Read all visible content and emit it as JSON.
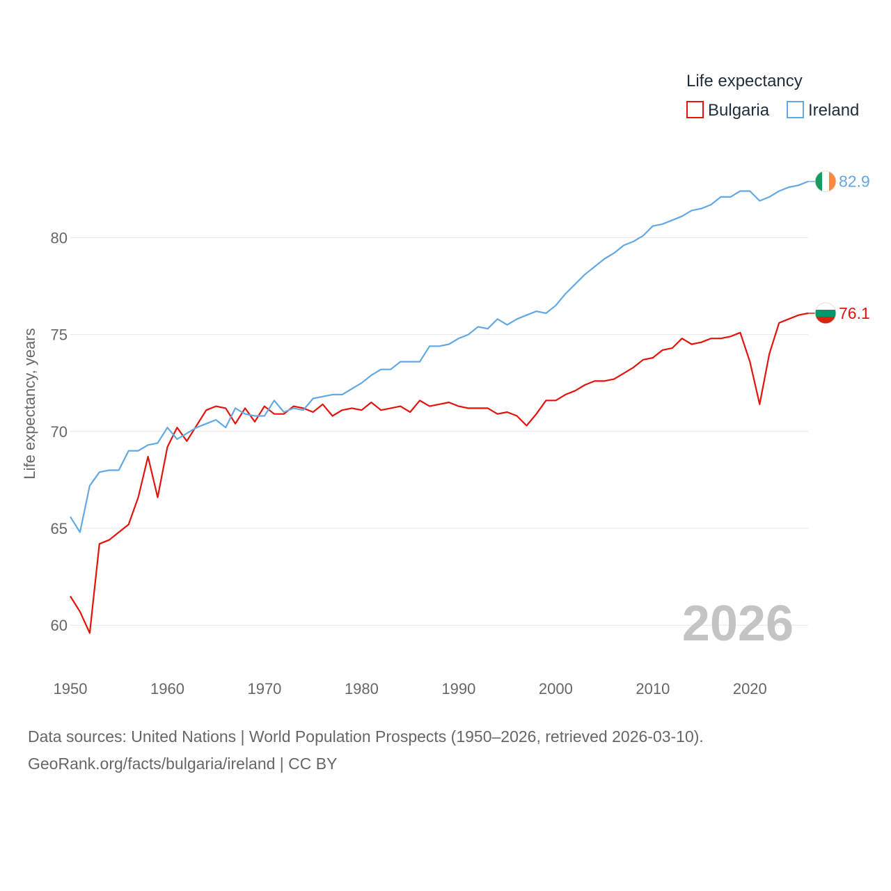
{
  "colors": {
    "bulgaria": "#e3120b",
    "ireland": "#62a8e5",
    "grid": "#e6e6e6",
    "text": "#666666",
    "legend_text": "#1f2d3d",
    "watermark": "#c4c4c4"
  },
  "legend": {
    "title": "Life expectancy",
    "items": [
      "Bulgaria",
      "Ireland"
    ]
  },
  "year_watermark": "2026",
  "footer": {
    "line1": "Data sources: United Nations | World Population Prospects (1950–2026, retrieved 2026-03-10).",
    "line2": "GeoRank.org/facts/bulgaria/ireland | CC BY"
  },
  "chart_data": {
    "type": "line",
    "title": "",
    "xlabel": "",
    "ylabel": "Life expectancy, years",
    "xlim": [
      1950,
      2026
    ],
    "ylim": [
      58.5,
      84
    ],
    "x_ticks": [
      1950,
      1960,
      1970,
      1980,
      1990,
      2000,
      2010,
      2020
    ],
    "y_ticks": [
      60,
      65,
      70,
      75,
      80
    ],
    "grid": true,
    "legend_position": "top-right",
    "x": [
      1950,
      1951,
      1952,
      1953,
      1954,
      1955,
      1956,
      1957,
      1958,
      1959,
      1960,
      1961,
      1962,
      1963,
      1964,
      1965,
      1966,
      1967,
      1968,
      1969,
      1970,
      1971,
      1972,
      1973,
      1974,
      1975,
      1976,
      1977,
      1978,
      1979,
      1980,
      1981,
      1982,
      1983,
      1984,
      1985,
      1986,
      1987,
      1988,
      1989,
      1990,
      1991,
      1992,
      1993,
      1994,
      1995,
      1996,
      1997,
      1998,
      1999,
      2000,
      2001,
      2002,
      2003,
      2004,
      2005,
      2006,
      2007,
      2008,
      2009,
      2010,
      2011,
      2012,
      2013,
      2014,
      2015,
      2016,
      2017,
      2018,
      2019,
      2020,
      2021,
      2022,
      2023,
      2024,
      2025,
      2026
    ],
    "series": [
      {
        "name": "Bulgaria",
        "color": "#e3120b",
        "end_label": "76.1",
        "values": [
          61.5,
          60.7,
          59.6,
          64.2,
          64.4,
          64.8,
          65.2,
          66.6,
          68.7,
          66.6,
          69.2,
          70.2,
          69.5,
          70.3,
          71.1,
          71.3,
          71.2,
          70.4,
          71.2,
          70.5,
          71.3,
          70.9,
          70.9,
          71.3,
          71.2,
          71.0,
          71.4,
          70.8,
          71.1,
          71.2,
          71.1,
          71.5,
          71.1,
          71.2,
          71.3,
          71.0,
          71.6,
          71.3,
          71.4,
          71.5,
          71.3,
          71.2,
          71.2,
          71.2,
          70.9,
          71.0,
          70.8,
          70.3,
          70.9,
          71.6,
          71.6,
          71.9,
          72.1,
          72.4,
          72.6,
          72.6,
          72.7,
          73.0,
          73.3,
          73.7,
          73.8,
          74.2,
          74.3,
          74.8,
          74.5,
          74.6,
          74.8,
          74.8,
          74.9,
          75.1,
          73.6,
          71.4,
          74.0,
          75.6,
          75.8,
          76.0,
          76.1
        ]
      },
      {
        "name": "Ireland",
        "color": "#62a8e5",
        "end_label": "82.9",
        "values": [
          65.6,
          64.8,
          67.2,
          67.9,
          68.0,
          68.0,
          69.0,
          69.0,
          69.3,
          69.4,
          70.2,
          69.6,
          69.9,
          70.2,
          70.4,
          70.6,
          70.2,
          71.2,
          70.9,
          70.8,
          70.8,
          71.6,
          71.0,
          71.2,
          71.1,
          71.7,
          71.8,
          71.9,
          71.9,
          72.2,
          72.5,
          72.9,
          73.2,
          73.2,
          73.6,
          73.6,
          73.6,
          74.4,
          74.4,
          74.5,
          74.8,
          75.0,
          75.4,
          75.3,
          75.8,
          75.5,
          75.8,
          76.0,
          76.2,
          76.1,
          76.5,
          77.1,
          77.6,
          78.1,
          78.5,
          78.9,
          79.2,
          79.6,
          79.8,
          80.1,
          80.6,
          80.7,
          80.9,
          81.1,
          81.4,
          81.5,
          81.7,
          82.1,
          82.1,
          82.4,
          82.4,
          81.9,
          82.1,
          82.4,
          82.6,
          82.7,
          82.9
        ]
      }
    ]
  }
}
